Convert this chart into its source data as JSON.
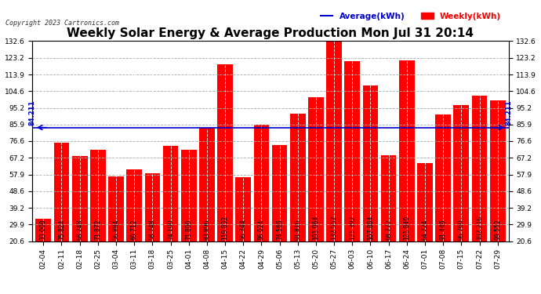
{
  "title": "Weekly Solar Energy & Average Production Mon Jul 31 20:14",
  "copyright": "Copyright 2023 Cartronics.com",
  "categories": [
    "02-04",
    "02-11",
    "02-18",
    "02-25",
    "03-04",
    "03-11",
    "03-18",
    "03-25",
    "04-01",
    "04-08",
    "04-15",
    "04-22",
    "04-29",
    "05-06",
    "05-13",
    "05-20",
    "05-27",
    "06-03",
    "06-10",
    "06-17",
    "06-24",
    "07-01",
    "07-08",
    "07-15",
    "07-22",
    "07-29"
  ],
  "values": [
    33.008,
    75.824,
    68.248,
    71.872,
    56.884,
    60.712,
    58.748,
    74.1,
    71.8,
    83.896,
    119.832,
    56.344,
    86.024,
    74.568,
    91.816,
    101.064,
    132.552,
    121.392,
    107.884,
    68.772,
    121.84,
    64.224,
    91.448,
    96.76,
    102.216,
    99.552
  ],
  "average": 84.211,
  "bar_color": "#ff0000",
  "average_line_color": "#0000cc",
  "background_color": "#ffffff",
  "plot_bg_color": "#ffffff",
  "grid_color": "#aaaaaa",
  "ylim_min": 20.6,
  "ylim_max": 132.6,
  "yticks": [
    20.6,
    29.9,
    39.2,
    48.6,
    57.9,
    67.2,
    76.6,
    85.9,
    95.2,
    104.6,
    113.9,
    123.2,
    132.6
  ],
  "legend_average_label": "Average(kWh)",
  "legend_weekly_label": "Weekly(kWh)",
  "average_label": "84.211",
  "title_fontsize": 11,
  "tick_fontsize": 6.5,
  "value_fontsize": 5.5
}
